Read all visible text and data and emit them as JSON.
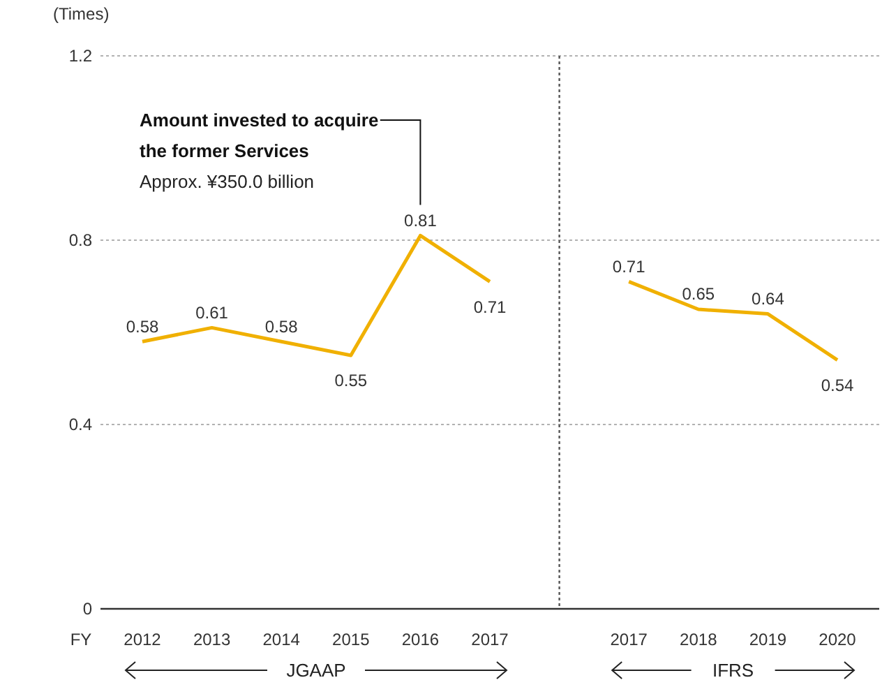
{
  "chart_data": {
    "type": "line",
    "ylabel": "(Times)",
    "xlabel": "FY",
    "categories": [
      "2012",
      "2013",
      "2014",
      "2015",
      "2016",
      "2017",
      null,
      "2017",
      "2018",
      "2019",
      "2020"
    ],
    "values": [
      0.58,
      0.61,
      0.58,
      0.55,
      0.81,
      0.71,
      null,
      0.71,
      0.65,
      0.64,
      0.54
    ],
    "color": "#f0b000",
    "ylim": [
      0,
      1.2
    ],
    "yticks": [
      0,
      0.4,
      0.8,
      1.2
    ],
    "grid": "y",
    "data_labels": true,
    "marker": "none",
    "line_style": "solid",
    "annotations": [
      "Amount invested to acquire the former Services",
      "Approx. ¥350.0 billion",
      "JGAAP",
      "IFRS"
    ]
  }
}
